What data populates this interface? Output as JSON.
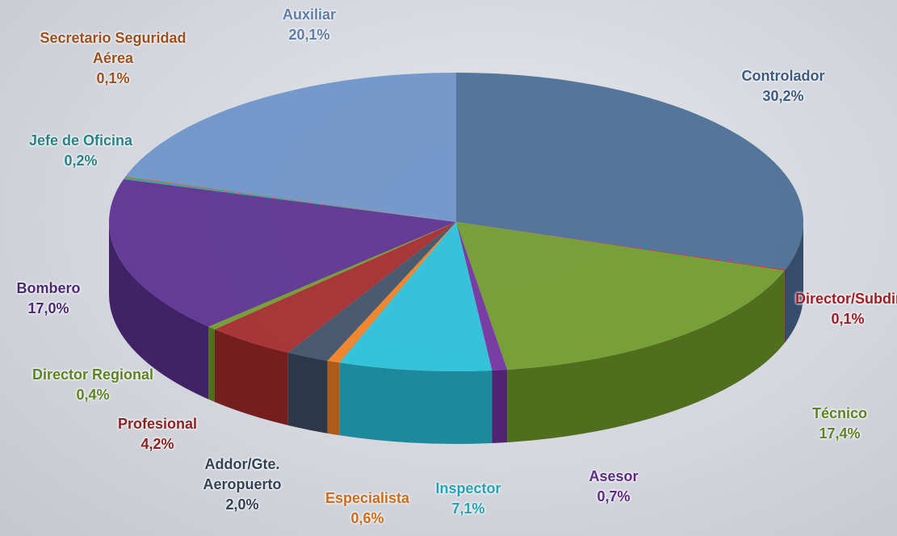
{
  "chart_data": {
    "type": "pie3d",
    "categories": [
      "Controlador",
      "Director/Subdirector",
      "Técnico",
      "Asesor",
      "Inspector",
      "Especialista",
      "Addor/Gte. Aeropuerto",
      "Profesional",
      "Director Regional",
      "Bombero",
      "Jefe de Oficina",
      "Secretario Seguridad Aérea",
      "Auxiliar"
    ],
    "values": [
      30.2,
      0.1,
      17.4,
      0.7,
      7.1,
      0.6,
      2.0,
      4.2,
      0.4,
      17.0,
      0.2,
      0.1,
      20.1
    ],
    "value_labels": [
      "30,2%",
      "0,1%",
      "17,4%",
      "0,7%",
      "7,1%",
      "0,6%",
      "2,0%",
      "4,2%",
      "0,4%",
      "17,0%",
      "0,2%",
      "0,1%",
      "20,1%"
    ],
    "colors": [
      "#4a6b94",
      "#c0202a",
      "#6f9a2a",
      "#7030a0",
      "#27c0d8",
      "#f07f22",
      "#3d4e66",
      "#a4282a",
      "#6f9a2a",
      "#5a2f8e",
      "#2f9aa0",
      "#b85d25",
      "#6d93c8"
    ]
  }
}
